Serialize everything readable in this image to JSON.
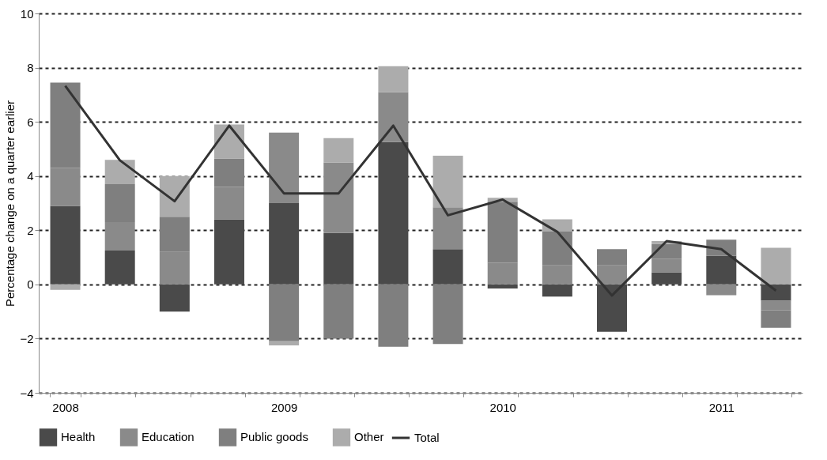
{
  "chart_data": {
    "type": "bar",
    "stacked": true,
    "ylabel": "Percentage change on a quarter earlier",
    "categories": [
      "2008",
      null,
      null,
      null,
      "2009",
      null,
      null,
      null,
      "2010",
      null,
      null,
      null,
      "2011",
      null
    ],
    "series": [
      {
        "name": "Health",
        "color": "#4a4a4a",
        "values": [
          2.9,
          1.25,
          -1.0,
          2.4,
          3.0,
          1.9,
          5.25,
          1.3,
          -0.15,
          -0.45,
          -1.75,
          0.45,
          1.05,
          -0.6
        ]
      },
      {
        "name": "Education",
        "color": "#8a8a8a",
        "values": [
          1.4,
          1.05,
          1.2,
          1.2,
          2.6,
          2.6,
          1.85,
          1.55,
          0.8,
          0.7,
          0.7,
          0.5,
          -0.4,
          -0.35
        ]
      },
      {
        "name": "Public goods",
        "color": "#7f7f7f",
        "values": [
          3.15,
          1.4,
          1.3,
          1.05,
          -2.1,
          -2.0,
          -2.3,
          -2.2,
          2.25,
          1.25,
          0.6,
          0.55,
          0.6,
          -0.65
        ]
      },
      {
        "name": "Other",
        "color": "#acacac",
        "values": [
          -0.2,
          0.9,
          1.5,
          1.25,
          -0.15,
          0.9,
          0.95,
          1.9,
          0.15,
          0.45,
          0,
          0.1,
          0,
          1.35
        ]
      },
      {
        "name": "Total",
        "type": "line",
        "color": "#333333",
        "values": [
          7.33,
          4.58,
          3.07,
          5.86,
          3.36,
          3.36,
          5.86,
          2.55,
          3.13,
          1.94,
          -0.41,
          1.6,
          1.3,
          -0.23
        ]
      }
    ],
    "ylim": [
      -4,
      10
    ],
    "yticks": [
      -4,
      -2,
      0,
      2,
      4,
      6,
      8,
      10
    ],
    "grid": "y",
    "legend": "bottom",
    "line_style": "solid",
    "marker": "none"
  }
}
